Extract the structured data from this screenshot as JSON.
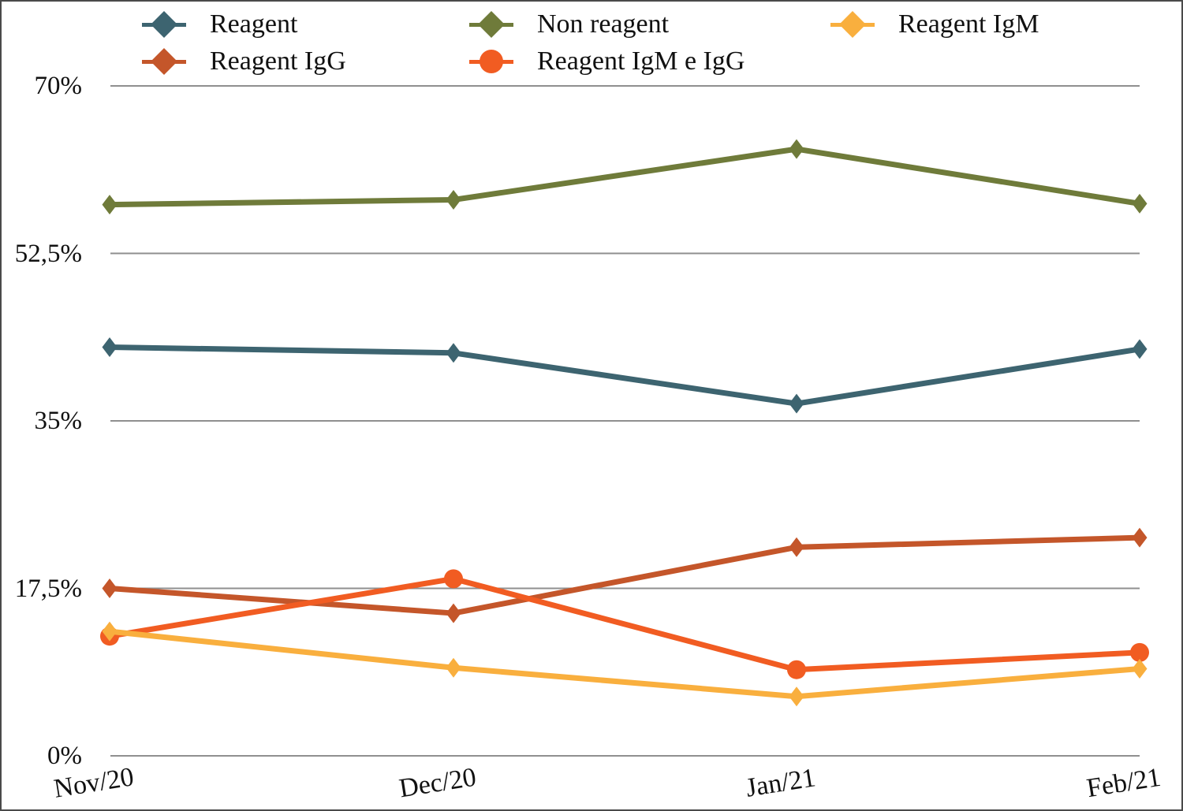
{
  "figure": {
    "background": "#ffffff",
    "border_color": "#4a4a4a",
    "grid_color": "#8f8f8f",
    "text_color": "#111111"
  },
  "legend": {
    "position": "top",
    "items": [
      {
        "label": "Reagent",
        "marker": "diamond",
        "color": "#3d6470"
      },
      {
        "label": "Non reagent",
        "marker": "diamond",
        "color": "#6f7b3a"
      },
      {
        "label": "Reagent IgM",
        "marker": "diamond",
        "color": "#f9af3e"
      },
      {
        "label": "Reagent IgG",
        "marker": "diamond",
        "color": "#c4562a"
      },
      {
        "label": "Reagent IgM e IgG",
        "marker": "circle",
        "color": "#f15c22"
      }
    ]
  },
  "chart_data": {
    "type": "line",
    "x": [
      "Nov/20",
      "Dec/20",
      "Jan/21",
      "Feb/21"
    ],
    "series": [
      {
        "name": "Reagent",
        "marker": "diamond",
        "color": "#3d6470",
        "values": [
          42.7,
          42.1,
          36.8,
          42.5
        ]
      },
      {
        "name": "Non reagent",
        "marker": "diamond",
        "color": "#6f7b3a",
        "values": [
          57.6,
          58.1,
          63.4,
          57.7
        ]
      },
      {
        "name": "Reagent IgG",
        "marker": "diamond",
        "color": "#c4562a",
        "values": [
          17.5,
          14.9,
          21.8,
          22.8
        ]
      },
      {
        "name": "Reagent IgM e IgG",
        "marker": "circle",
        "color": "#f15c22",
        "values": [
          12.5,
          18.5,
          9.0,
          10.8
        ]
      },
      {
        "name": "Reagent IgM",
        "marker": "diamond",
        "color": "#f9af3e",
        "values": [
          13.0,
          9.2,
          6.2,
          9.1
        ]
      }
    ],
    "ylim": [
      0,
      70
    ],
    "yticks": [
      {
        "value": 0,
        "label": "0%"
      },
      {
        "value": 17.5,
        "label": "17,5%"
      },
      {
        "value": 35,
        "label": "35%"
      },
      {
        "value": 52.5,
        "label": "52,5%"
      },
      {
        "value": 70,
        "label": "70%"
      }
    ],
    "grid": true,
    "legend_position": "top"
  }
}
